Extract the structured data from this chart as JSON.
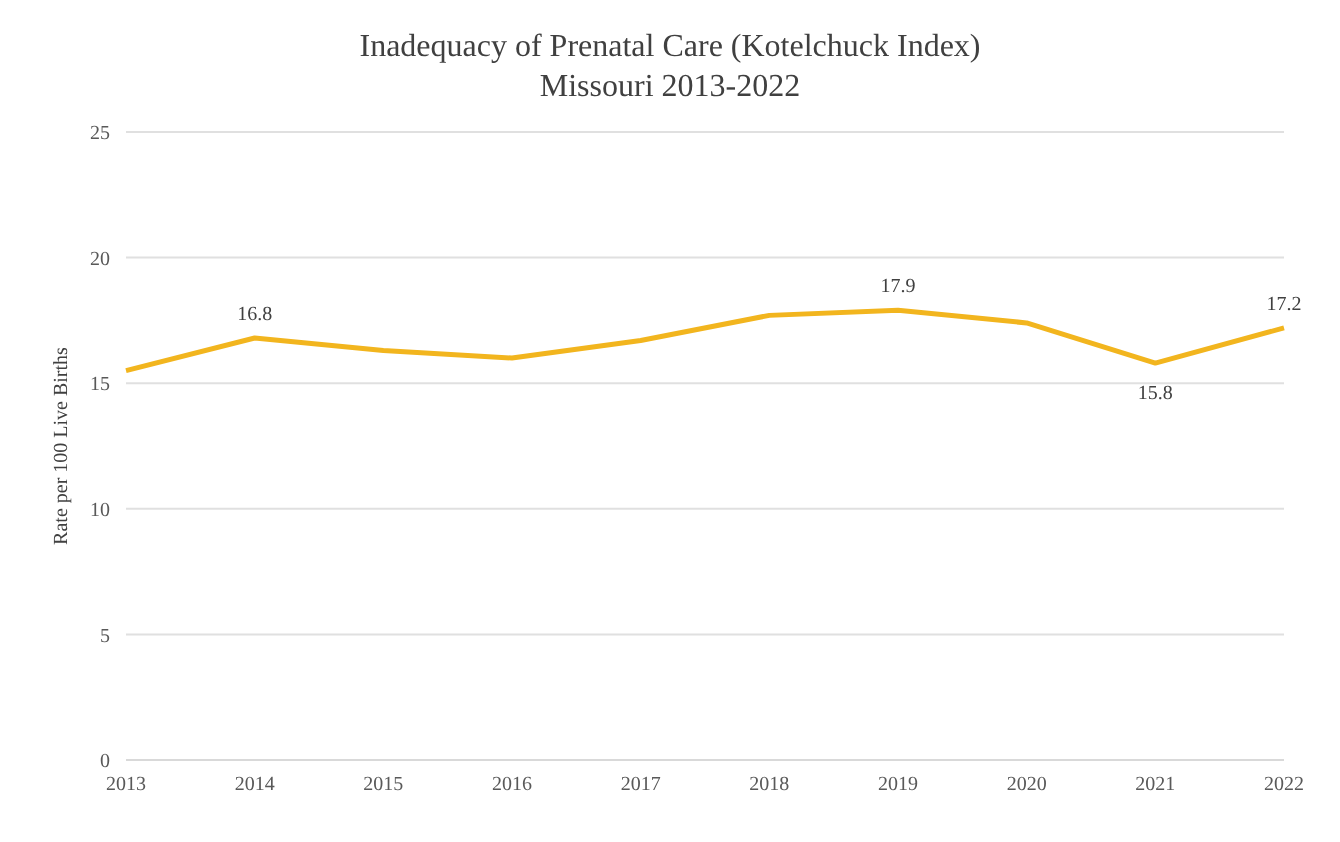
{
  "chart_data": {
    "type": "line",
    "title": "Inadequacy of Prenatal Care (Kotelchuck Index)",
    "subtitle": "Missouri 2013-2022",
    "ylabel": "Rate per 100 Live Births",
    "categories": [
      "2013",
      "2014",
      "2015",
      "2016",
      "2017",
      "2018",
      "2019",
      "2020",
      "2021",
      "2022"
    ],
    "series": [
      {
        "color": "#f2b51e",
        "values": [
          15.5,
          16.8,
          16.3,
          16.0,
          16.7,
          17.7,
          17.9,
          17.4,
          15.8,
          17.2
        ],
        "value_labels": [
          null,
          "16.8",
          null,
          null,
          null,
          null,
          "17.9",
          null,
          "15.8",
          "17.2"
        ]
      }
    ],
    "ylim": [
      0,
      25
    ],
    "yticks": [
      0,
      5,
      10,
      15,
      20,
      25
    ],
    "grid": "y",
    "marker": "none",
    "line_style": "solid"
  }
}
